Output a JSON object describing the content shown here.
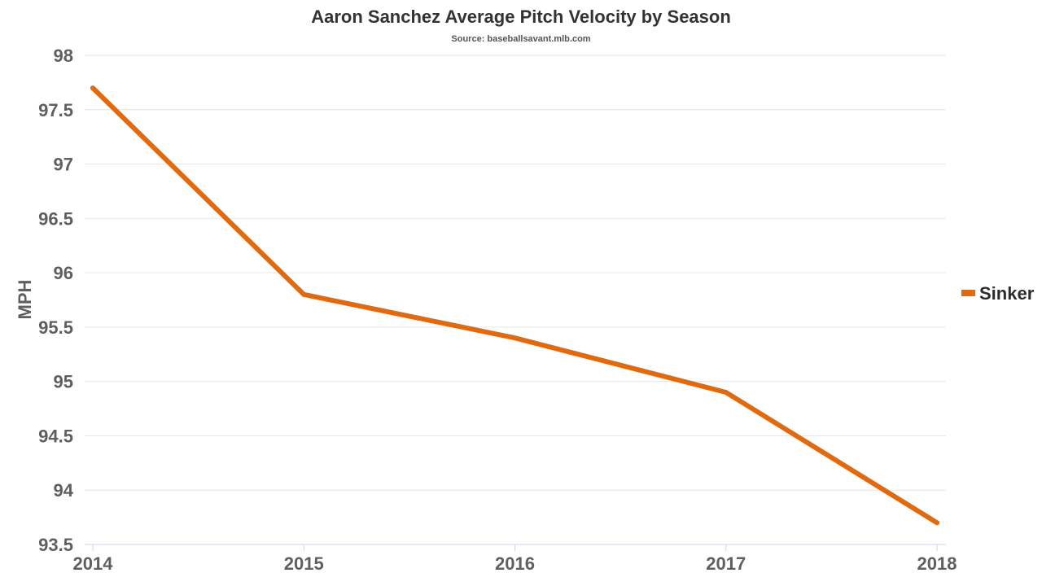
{
  "chart_data": {
    "type": "line",
    "title": "Aaron Sanchez Average Pitch Velocity by Season",
    "subtitle": "Source: baseballsavant.mlb.com",
    "xlabel": "",
    "ylabel": "MPH",
    "categories": [
      "2014",
      "2015",
      "2016",
      "2017",
      "2018"
    ],
    "ylim": [
      93.5,
      98
    ],
    "yticks": [
      "93.5",
      "94",
      "94.5",
      "95",
      "95.5",
      "96",
      "96.5",
      "97",
      "97.5",
      "98"
    ],
    "grid": true,
    "legend": "right",
    "series": [
      {
        "name": "Sinker",
        "color": "#e06a10",
        "values": [
          97.7,
          95.8,
          95.4,
          94.9,
          93.7
        ]
      }
    ]
  }
}
